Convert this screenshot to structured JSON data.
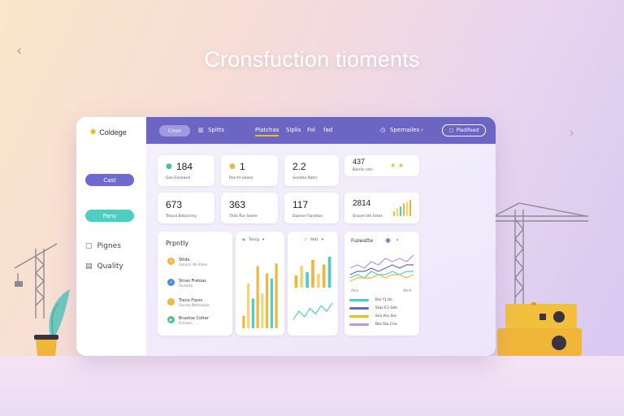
{
  "hero": {
    "title": "Cronsfuction tioments"
  },
  "nav": {
    "prev_icon": "‹",
    "next_icon": "›"
  },
  "sidebar": {
    "brand": "Coldege",
    "buttons": [
      {
        "label": "Cast"
      },
      {
        "label": "Pany"
      }
    ],
    "links": [
      {
        "label": "Pignes",
        "icon": "📋"
      },
      {
        "label": "Quality",
        "icon": "▤"
      }
    ]
  },
  "topbar": {
    "pill_label": "Cmor",
    "items": [
      {
        "label": "Spitts"
      },
      {
        "label": "Platchas"
      },
      {
        "label": "Siplis"
      },
      {
        "label": "Fol"
      },
      {
        "label": "fad"
      }
    ],
    "search_label": "Spemailes",
    "action_label": "Pladifeed"
  },
  "stats": [
    {
      "value": "184",
      "label": "Goo Eoneaed",
      "icon": "●",
      "color": "#4fbf8a"
    },
    {
      "value": "1",
      "label": "Ras tlr poans",
      "icon": "●",
      "color": "#f0b63a"
    },
    {
      "value": "2.2",
      "label": "Srastea Ratin",
      "icon": "",
      "color": ""
    },
    {
      "value": "437",
      "label": "Barrlis rrtis",
      "icon": "★ ★",
      "color": "#f0b63a"
    },
    {
      "value": "673",
      "label": "Tstuce Bstariviny",
      "icon": "",
      "color": ""
    },
    {
      "value": "363",
      "label": "Thds flur Sosile",
      "icon": "",
      "color": ""
    },
    {
      "value": "117",
      "label": "Deanie Ftarotios",
      "icon": "",
      "color": ""
    },
    {
      "value": "2814",
      "label": "Sncoel ldo Sstes",
      "icon": "",
      "color": ""
    }
  ],
  "priority": {
    "title": "Prpntly",
    "tasks": [
      {
        "title": "Sttda",
        "sub": "Carsurs lite Staes",
        "color": "#f0b63a"
      },
      {
        "title": "Stnas Fratoas",
        "sub": "Fausalsa",
        "color": "#4a8fdc"
      },
      {
        "title": "Trano Foxxs",
        "sub": "Socnoe Btliteoaete",
        "color": "#f0b63a"
      },
      {
        "title": "Bnastse Cotter",
        "sub": "Frrsosen",
        "color": "#4fbf8a"
      }
    ]
  },
  "bar_panel": {
    "filter_label": "Tancg"
  },
  "line_panel": {
    "filter_label": "Stdz"
  },
  "trend_panel": {
    "title": "Fuswatte",
    "axis_labels": [
      "Ateo",
      "Wlnd"
    ],
    "legend": [
      {
        "label": "Bar f1 tlo",
        "color": "#4fcdc0"
      },
      {
        "label": "Stas E3 Sde",
        "color": "#6a66c2"
      },
      {
        "label": "Sns Aro Sre",
        "color": "#f0b63a"
      },
      {
        "label": "Bta Sta Cne",
        "color": "#b49ae0"
      }
    ]
  },
  "chart_data": [
    {
      "type": "bar",
      "categories": [
        "1",
        "2",
        "3",
        "4",
        "5",
        "6",
        "7",
        "8"
      ],
      "values": [
        5,
        18,
        12,
        25,
        14,
        22,
        20,
        26
      ],
      "ylim": [
        0,
        30
      ]
    },
    {
      "type": "bar",
      "categories": [
        "1",
        "2",
        "3",
        "4",
        "5",
        "6",
        "7"
      ],
      "values": [
        8,
        14,
        10,
        18,
        9,
        15,
        20
      ],
      "ylim": [
        0,
        22
      ]
    },
    {
      "type": "line",
      "x": [
        1,
        2,
        3,
        4,
        5,
        6,
        7,
        8
      ],
      "series": [
        {
          "values": [
            2,
            5,
            3,
            6,
            4,
            7,
            5,
            8
          ]
        }
      ],
      "ylim": [
        0,
        10
      ]
    },
    {
      "type": "bar",
      "categories": [
        "1",
        "2",
        "3",
        "4",
        "5",
        "6"
      ],
      "values": [
        3,
        5,
        6,
        8,
        9,
        10
      ],
      "ylim": [
        0,
        10
      ]
    },
    {
      "type": "line",
      "x": [
        1,
        2,
        3,
        4,
        5,
        6,
        7,
        8,
        9,
        10
      ],
      "series": [
        {
          "values": [
            5,
            6,
            5,
            7,
            6,
            8,
            7,
            8,
            7,
            9
          ]
        },
        {
          "values": [
            3,
            4,
            4,
            5,
            4,
            5,
            6,
            5,
            6,
            6
          ]
        },
        {
          "values": [
            2,
            3,
            2,
            4,
            3,
            3,
            4,
            3,
            4,
            4
          ]
        },
        {
          "values": [
            1,
            2,
            2,
            2,
            3,
            2,
            3,
            3,
            2,
            3
          ]
        }
      ],
      "series_colors": [
        "#b49ae0",
        "#6a66c2",
        "#4fcdc0",
        "#f0b63a"
      ],
      "ylim": [
        0,
        10
      ]
    }
  ]
}
